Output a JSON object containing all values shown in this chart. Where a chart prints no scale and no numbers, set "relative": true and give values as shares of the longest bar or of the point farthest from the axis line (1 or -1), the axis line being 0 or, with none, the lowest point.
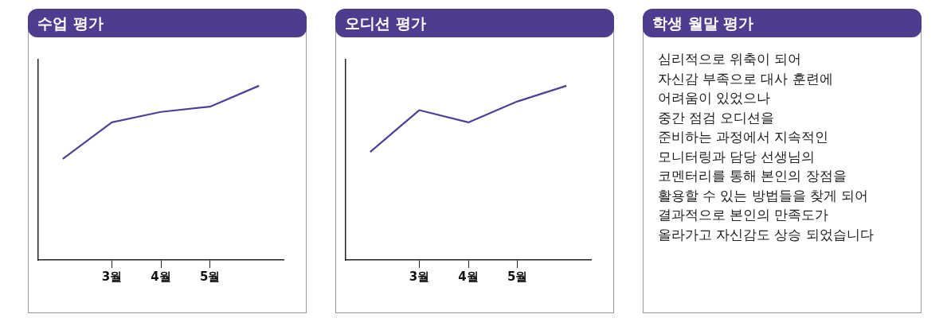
{
  "chart_data": [
    {
      "type": "line",
      "title": "수업 평가",
      "relative": true,
      "categories": [
        null,
        "3월",
        "4월",
        "5월",
        null
      ],
      "series": [
        {
          "color": "#4f4199",
          "values": [
            0.58,
            0.79,
            0.85,
            0.88,
            1
          ]
        }
      ]
    },
    {
      "type": "line",
      "title": "오디션 평가",
      "relative": true,
      "categories": [
        null,
        "3월",
        "4월",
        "5월",
        null
      ],
      "series": [
        {
          "color": "#4f4199",
          "values": [
            0.62,
            0.86,
            0.79,
            0.91,
            1
          ]
        }
      ]
    },
    {
      "type": "other",
      "title": "학생 월말 평가",
      "annotations": [
        "심리적으로 위축이 되어",
        "자신감 부족으로 대사 훈련에",
        "어려움이 있었으나",
        "중간 점검 오디션을",
        "준비하는 과정에서 지속적인",
        "모니터링과 담당 선생님의",
        "코멘터리를 통해 본인의 장점을",
        "활용할 수 있는 방법들을 찾게 되어",
        "결과적으로 본인의 만족도가",
        "올라가고 자신감도 상승 되었습니다"
      ]
    }
  ]
}
